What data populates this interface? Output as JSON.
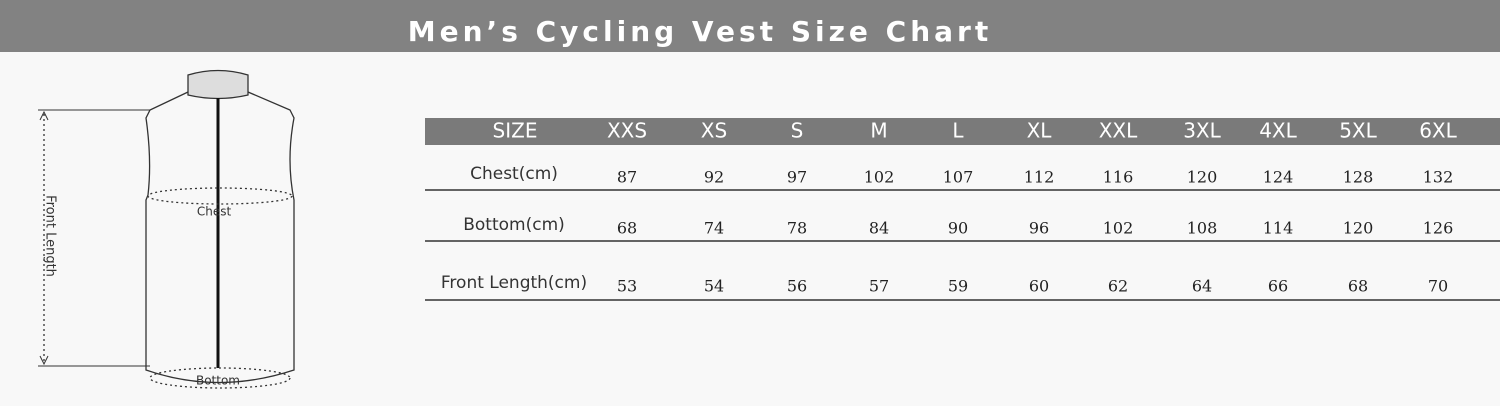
{
  "header": {
    "title": "Men’s Cycling Vest Size Chart"
  },
  "diagram": {
    "chest": "Chest",
    "bottom": "Bottom",
    "front_length": "Front Length"
  },
  "table": {
    "header": [
      "SIZE",
      "XXS",
      "XS",
      "S",
      "M",
      "L",
      "XL",
      "XXL",
      "3XL",
      "4XL",
      "5XL",
      "6XL"
    ],
    "rows": [
      [
        "Chest(cm)",
        87,
        92,
        97,
        102,
        107,
        112,
        116,
        120,
        124,
        128,
        132
      ],
      [
        "Bottom(cm)",
        68,
        74,
        78,
        84,
        90,
        96,
        102,
        108,
        114,
        120,
        126
      ],
      [
        "Front Length(cm)",
        53,
        54,
        56,
        57,
        59,
        60,
        62,
        64,
        66,
        68,
        70
      ]
    ]
  }
}
